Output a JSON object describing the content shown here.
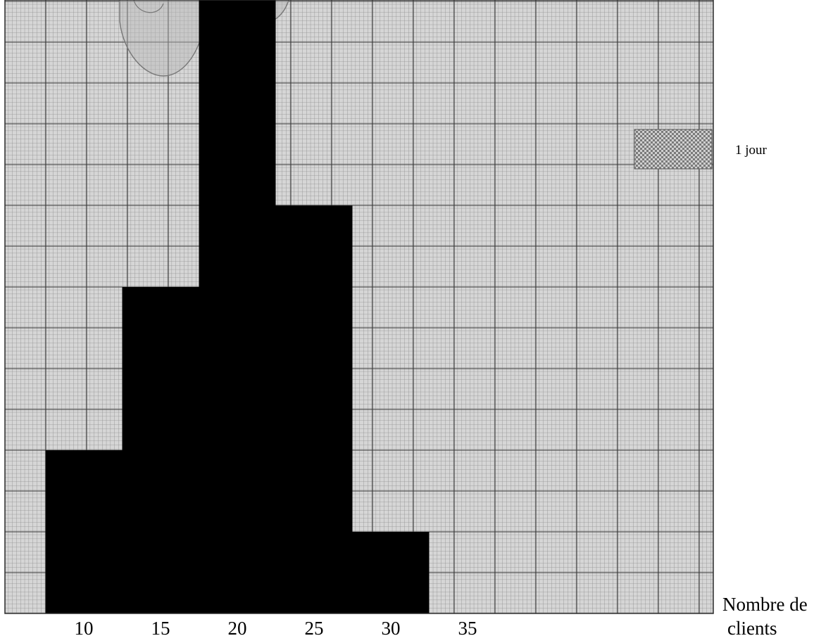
{
  "chart_data": {
    "type": "bar",
    "chart_subtype": "histogram",
    "title": "",
    "xlabel": "Nombre de clients",
    "xlabel_lines": [
      "Nombre de",
      "clients"
    ],
    "ylabel": "",
    "unit": "1 jour",
    "x_ticks": [
      10,
      15,
      20,
      25,
      30,
      35
    ],
    "bins": [
      {
        "from": 7.5,
        "to": 12.5,
        "days": 2
      },
      {
        "from": 12.5,
        "to": 17.5,
        "days": 4
      },
      {
        "from": 17.5,
        "to": 22.5,
        "days": 8
      },
      {
        "from": 22.5,
        "to": 27.5,
        "days": 5
      },
      {
        "from": 27.5,
        "to": 32.5,
        "days": 1
      }
    ],
    "xlim": [
      5,
      50
    ],
    "ylim": [
      0,
      10
    ],
    "grid": true,
    "legend": {
      "label": "1 jour",
      "placement": "right"
    },
    "colors": {
      "bars": "#000000",
      "paper": "#d4d4d4",
      "minor_grid": "#888888",
      "major_grid": "#3a3a3a",
      "legend_swatch": "#5a5a5a"
    }
  }
}
